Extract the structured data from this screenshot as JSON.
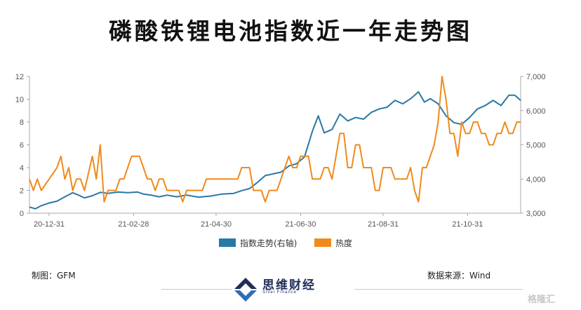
{
  "title": "磷酸铁锂电池指数近一年走势图",
  "footer": {
    "left": "制图：GFM",
    "right": "数据来源：Wind",
    "logo_text": "思维财经",
    "logo_sub": "Sivei Finance",
    "watermark": "格隆汇"
  },
  "colors": {
    "index": "#2a78a6",
    "heat": "#f08a1c",
    "axis": "#aaaaaa"
  },
  "chart_data": {
    "type": "line",
    "title": "磷酸铁锂电池指数近一年走势图",
    "x_tick_labels": [
      "20-12-31",
      "21-02-28",
      "21-04-30",
      "21-06-30",
      "21-08-31",
      "21-10-31"
    ],
    "x_tick_positions": [
      10,
      53,
      95,
      138,
      180,
      223
    ],
    "x_range": [
      0,
      250
    ],
    "y_left": {
      "lim": [
        0,
        12
      ],
      "ticks": [
        0,
        2,
        4,
        6,
        8,
        10,
        12
      ]
    },
    "y_right": {
      "lim": [
        3000,
        7000
      ],
      "ticks": [
        "3,000",
        "4,000",
        "5,000",
        "6,000",
        "7,000"
      ]
    },
    "legend_placement": "bottom-center",
    "grid": false,
    "series": [
      {
        "name": "指数走势(右轴)",
        "axis": "right",
        "color": "#2a78a6",
        "points": [
          [
            0,
            3180
          ],
          [
            3,
            3130
          ],
          [
            6,
            3220
          ],
          [
            10,
            3300
          ],
          [
            14,
            3350
          ],
          [
            18,
            3480
          ],
          [
            22,
            3600
          ],
          [
            25,
            3530
          ],
          [
            28,
            3450
          ],
          [
            32,
            3510
          ],
          [
            36,
            3610
          ],
          [
            40,
            3580
          ],
          [
            45,
            3620
          ],
          [
            50,
            3600
          ],
          [
            55,
            3620
          ],
          [
            58,
            3560
          ],
          [
            62,
            3530
          ],
          [
            66,
            3480
          ],
          [
            70,
            3530
          ],
          [
            75,
            3480
          ],
          [
            80,
            3530
          ],
          [
            86,
            3470
          ],
          [
            92,
            3500
          ],
          [
            98,
            3560
          ],
          [
            104,
            3580
          ],
          [
            108,
            3660
          ],
          [
            112,
            3720
          ],
          [
            116,
            3900
          ],
          [
            120,
            4100
          ],
          [
            124,
            4150
          ],
          [
            128,
            4200
          ],
          [
            132,
            4380
          ],
          [
            136,
            4450
          ],
          [
            140,
            4650
          ],
          [
            144,
            5400
          ],
          [
            147,
            5850
          ],
          [
            150,
            5350
          ],
          [
            154,
            5450
          ],
          [
            158,
            5900
          ],
          [
            162,
            5700
          ],
          [
            166,
            5800
          ],
          [
            170,
            5750
          ],
          [
            174,
            5950
          ],
          [
            178,
            6050
          ],
          [
            182,
            6100
          ],
          [
            186,
            6300
          ],
          [
            190,
            6200
          ],
          [
            194,
            6350
          ],
          [
            198,
            6550
          ],
          [
            201,
            6250
          ],
          [
            204,
            6350
          ],
          [
            208,
            6200
          ],
          [
            212,
            5850
          ],
          [
            216,
            5650
          ],
          [
            220,
            5600
          ],
          [
            224,
            5800
          ],
          [
            228,
            6050
          ],
          [
            232,
            6150
          ],
          [
            236,
            6300
          ],
          [
            240,
            6150
          ],
          [
            244,
            6450
          ],
          [
            247,
            6450
          ],
          [
            250,
            6300
          ]
        ]
      },
      {
        "name": "热度",
        "axis": "left",
        "color": "#f08a1c",
        "points": [
          [
            0,
            3
          ],
          [
            2,
            2
          ],
          [
            4,
            3
          ],
          [
            6,
            2
          ],
          [
            10,
            3
          ],
          [
            14,
            4
          ],
          [
            16,
            5
          ],
          [
            18,
            3
          ],
          [
            20,
            4
          ],
          [
            22,
            2
          ],
          [
            24,
            3
          ],
          [
            26,
            3
          ],
          [
            28,
            2
          ],
          [
            32,
            5
          ],
          [
            34,
            3
          ],
          [
            36,
            6
          ],
          [
            38,
            1
          ],
          [
            40,
            2
          ],
          [
            44,
            2
          ],
          [
            46,
            3
          ],
          [
            48,
            3
          ],
          [
            50,
            4
          ],
          [
            52,
            5
          ],
          [
            54,
            5
          ],
          [
            56,
            5
          ],
          [
            58,
            4
          ],
          [
            60,
            3
          ],
          [
            62,
            3
          ],
          [
            64,
            2
          ],
          [
            66,
            3
          ],
          [
            68,
            3
          ],
          [
            70,
            2
          ],
          [
            72,
            2
          ],
          [
            74,
            2
          ],
          [
            76,
            2
          ],
          [
            78,
            1
          ],
          [
            80,
            2
          ],
          [
            82,
            2
          ],
          [
            84,
            2
          ],
          [
            86,
            2
          ],
          [
            88,
            2
          ],
          [
            90,
            3
          ],
          [
            92,
            3
          ],
          [
            94,
            3
          ],
          [
            96,
            3
          ],
          [
            98,
            3
          ],
          [
            100,
            3
          ],
          [
            102,
            3
          ],
          [
            104,
            3
          ],
          [
            106,
            3
          ],
          [
            108,
            4
          ],
          [
            110,
            4
          ],
          [
            112,
            4
          ],
          [
            114,
            2
          ],
          [
            116,
            2
          ],
          [
            118,
            2
          ],
          [
            120,
            1
          ],
          [
            122,
            2
          ],
          [
            124,
            2
          ],
          [
            126,
            2
          ],
          [
            128,
            3
          ],
          [
            130,
            4
          ],
          [
            132,
            5
          ],
          [
            134,
            4
          ],
          [
            136,
            4
          ],
          [
            138,
            5
          ],
          [
            140,
            5
          ],
          [
            142,
            5
          ],
          [
            144,
            3
          ],
          [
            146,
            3
          ],
          [
            148,
            3
          ],
          [
            150,
            4
          ],
          [
            152,
            4
          ],
          [
            154,
            3
          ],
          [
            156,
            5
          ],
          [
            158,
            7
          ],
          [
            160,
            7
          ],
          [
            162,
            4
          ],
          [
            164,
            4
          ],
          [
            166,
            6
          ],
          [
            168,
            6
          ],
          [
            170,
            4
          ],
          [
            172,
            4
          ],
          [
            174,
            4
          ],
          [
            176,
            2
          ],
          [
            178,
            2
          ],
          [
            180,
            4
          ],
          [
            182,
            4
          ],
          [
            184,
            4
          ],
          [
            186,
            3
          ],
          [
            188,
            3
          ],
          [
            190,
            3
          ],
          [
            192,
            3
          ],
          [
            194,
            4
          ],
          [
            196,
            2
          ],
          [
            198,
            1
          ],
          [
            200,
            4
          ],
          [
            202,
            4
          ],
          [
            204,
            5
          ],
          [
            206,
            6
          ],
          [
            208,
            8
          ],
          [
            210,
            12
          ],
          [
            212,
            10
          ],
          [
            214,
            7
          ],
          [
            216,
            7
          ],
          [
            218,
            5
          ],
          [
            220,
            8
          ],
          [
            222,
            7
          ],
          [
            224,
            7
          ],
          [
            226,
            8
          ],
          [
            228,
            8
          ],
          [
            230,
            7
          ],
          [
            232,
            7
          ],
          [
            234,
            6
          ],
          [
            236,
            6
          ],
          [
            238,
            7
          ],
          [
            240,
            7
          ],
          [
            242,
            8
          ],
          [
            244,
            7
          ],
          [
            246,
            7
          ],
          [
            248,
            8
          ],
          [
            250,
            8
          ]
        ]
      }
    ]
  }
}
